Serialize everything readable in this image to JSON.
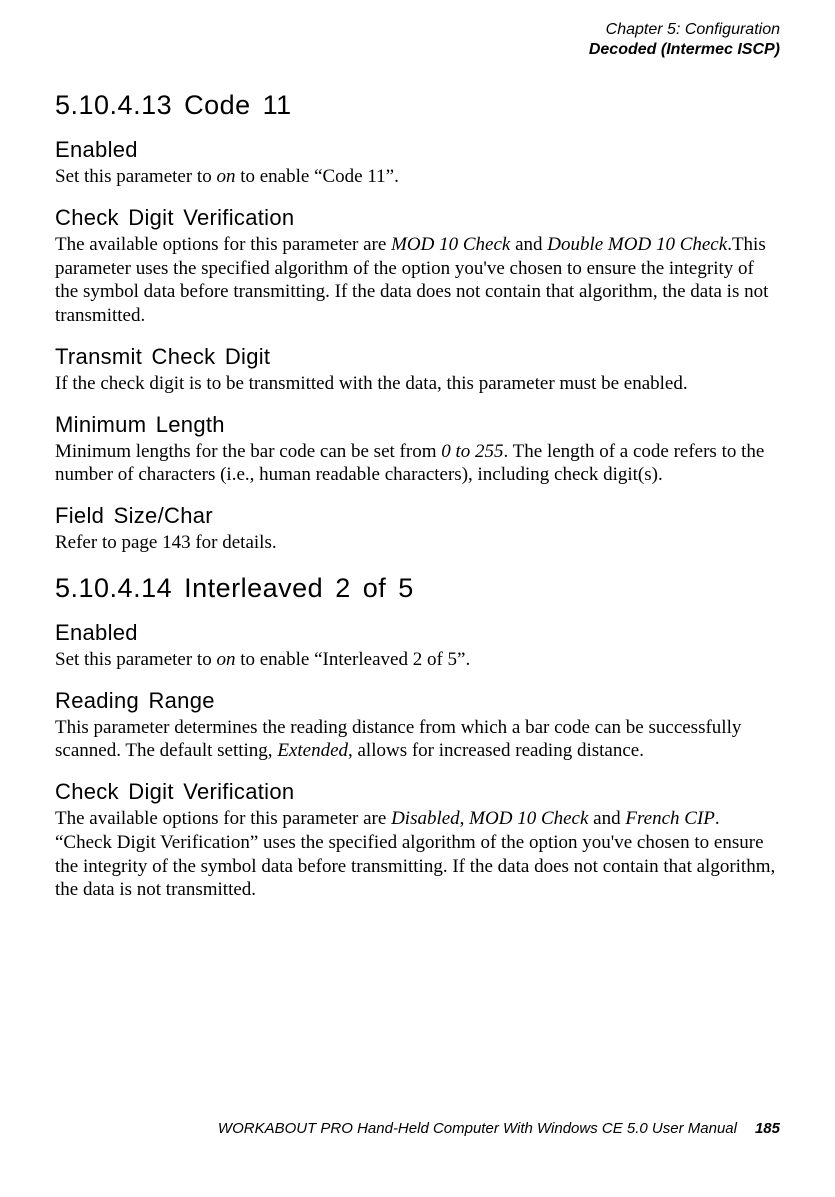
{
  "header": {
    "line1": "Chapter 5: Configuration",
    "line2": "Decoded (Intermec ISCP)"
  },
  "sections": {
    "s1": {
      "heading": "5.10.4.13  Code 11",
      "sub1_h": "Enabled",
      "sub1_t1": "Set this parameter to ",
      "sub1_i1": "on",
      "sub1_t2": " to enable “Code 11”.",
      "sub2_h": "Check Digit Verification",
      "sub2_t1": "The available options for this parameter are ",
      "sub2_i1": "MOD 10 Check",
      "sub2_t2": " and ",
      "sub2_i2": "Double MOD 10 Check",
      "sub2_t3": ".This parameter uses the specified algorithm of the option you've chosen to ensure the integrity of the symbol data before transmitting. If the data does not contain that algorithm, the data is not transmitted.",
      "sub3_h": "Transmit Check Digit",
      "sub3_t1": "If the check digit is to be transmitted with the data, this parameter must be enabled.",
      "sub4_h": "Minimum Length",
      "sub4_t1": "Minimum lengths for the bar code can be set from ",
      "sub4_i1": "0 to 255",
      "sub4_t2": ". The length of a code refers to the number of characters (i.e., human readable characters), including check digit(s).",
      "sub5_h": "Field Size/Char",
      "sub5_t1": "Refer to page 143 for details."
    },
    "s2": {
      "heading": "5.10.4.14  Interleaved 2 of 5",
      "sub1_h": "Enabled",
      "sub1_t1": "Set this parameter to ",
      "sub1_i1": "on",
      "sub1_t2": " to enable “Interleaved 2 of 5”.",
      "sub2_h": "Reading Range",
      "sub2_t1": "This parameter determines the reading distance from which a bar code can be successfully scanned. The default setting, ",
      "sub2_i1": "Extended",
      "sub2_t2": ", allows for increased reading distance.",
      "sub3_h": "Check Digit Verification",
      "sub3_t1": "The available options for this parameter are ",
      "sub3_i1": "Disabled",
      "sub3_t2": ", ",
      "sub3_i2": "MOD 10 Check",
      "sub3_t3": " and ",
      "sub3_i3": "French CIP",
      "sub3_t4": ". “Check Digit Verification” uses the specified algorithm of the option you've chosen to ensure the integrity of the symbol data before transmitting. If the data does not contain that algorithm, the data is not transmitted."
    }
  },
  "footer": {
    "text": "WORKABOUT PRO Hand-Held Computer With Windows CE 5.0 User Manual",
    "page": "185"
  }
}
